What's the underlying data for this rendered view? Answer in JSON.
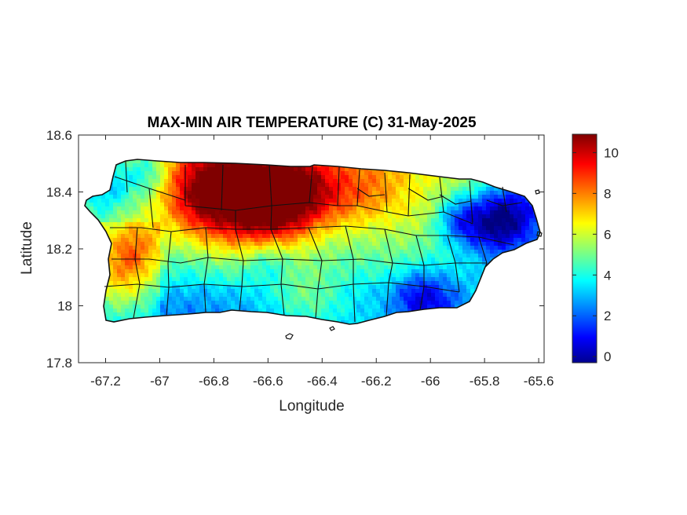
{
  "chart_data": {
    "type": "heatmap",
    "title": "MAX-MIN AIR TEMPERATURE (C) 31-May-2025",
    "xlabel": "Longitude",
    "ylabel": "Latitude",
    "xlim": [
      -67.3,
      -65.58
    ],
    "ylim": [
      17.8,
      18.6
    ],
    "xticks": [
      -67.2,
      -67,
      -66.8,
      -66.6,
      -66.4,
      -66.2,
      -66,
      -65.8,
      -65.6
    ],
    "xtick_labels": [
      "-67.2",
      "-67",
      "-66.8",
      "-66.6",
      "-66.4",
      "-66.2",
      "-66",
      "-65.8",
      "-65.6"
    ],
    "yticks": [
      17.8,
      18,
      18.2,
      18.4,
      18.6
    ],
    "ytick_labels": [
      "17.8",
      "18",
      "18.2",
      "18.4",
      "18.6"
    ],
    "colorbar": {
      "colormap": "jet",
      "range": [
        -0.3,
        10.9
      ],
      "ticks": [
        0,
        2,
        4,
        6,
        8,
        10
      ],
      "tick_labels": [
        "0",
        "2",
        "4",
        "6",
        "8",
        "10"
      ]
    },
    "grid": false,
    "hotspots": [
      {
        "lon": -66.7,
        "lat": 18.43,
        "value": 10.5,
        "spread": 0.14
      },
      {
        "lon": -66.5,
        "lat": 18.41,
        "value": 10.2,
        "spread": 0.1
      },
      {
        "lon": -66.85,
        "lat": 18.4,
        "value": 9.6,
        "spread": 0.12
      },
      {
        "lon": -66.6,
        "lat": 18.33,
        "value": 8.5,
        "spread": 0.1
      },
      {
        "lon": -66.35,
        "lat": 18.42,
        "value": 8.2,
        "spread": 0.1
      },
      {
        "lon": -66.2,
        "lat": 18.43,
        "value": 7.8,
        "spread": 0.09
      },
      {
        "lon": -67.1,
        "lat": 18.2,
        "value": 8.3,
        "spread": 0.07
      },
      {
        "lon": -67.15,
        "lat": 18.1,
        "value": 7.0,
        "spread": 0.08
      },
      {
        "lon": -66.0,
        "lat": 18.38,
        "value": 6.3,
        "spread": 0.07
      },
      {
        "lon": -67.2,
        "lat": 18.42,
        "value": 2.8,
        "spread": 0.06
      },
      {
        "lon": -67.05,
        "lat": 18.46,
        "value": 3.2,
        "spread": 0.06
      },
      {
        "lon": -65.68,
        "lat": 18.32,
        "value": 0.6,
        "spread": 0.1
      },
      {
        "lon": -65.78,
        "lat": 18.27,
        "value": 1.6,
        "spread": 0.08
      },
      {
        "lon": -65.9,
        "lat": 18.3,
        "value": 2.3,
        "spread": 0.06
      },
      {
        "lon": -66.05,
        "lat": 18.02,
        "value": 1.2,
        "spread": 0.07
      },
      {
        "lon": -65.95,
        "lat": 18.0,
        "value": 2.0,
        "spread": 0.08
      },
      {
        "lon": -66.6,
        "lat": 18.15,
        "value": 2.8,
        "spread": 0.06
      },
      {
        "lon": -66.95,
        "lat": 17.98,
        "value": 2.5,
        "spread": 0.05
      },
      {
        "lon": -66.25,
        "lat": 17.98,
        "value": 3.4,
        "spread": 0.08
      },
      {
        "lon": -66.45,
        "lat": 18.05,
        "value": 5.3,
        "spread": 0.1
      }
    ]
  }
}
